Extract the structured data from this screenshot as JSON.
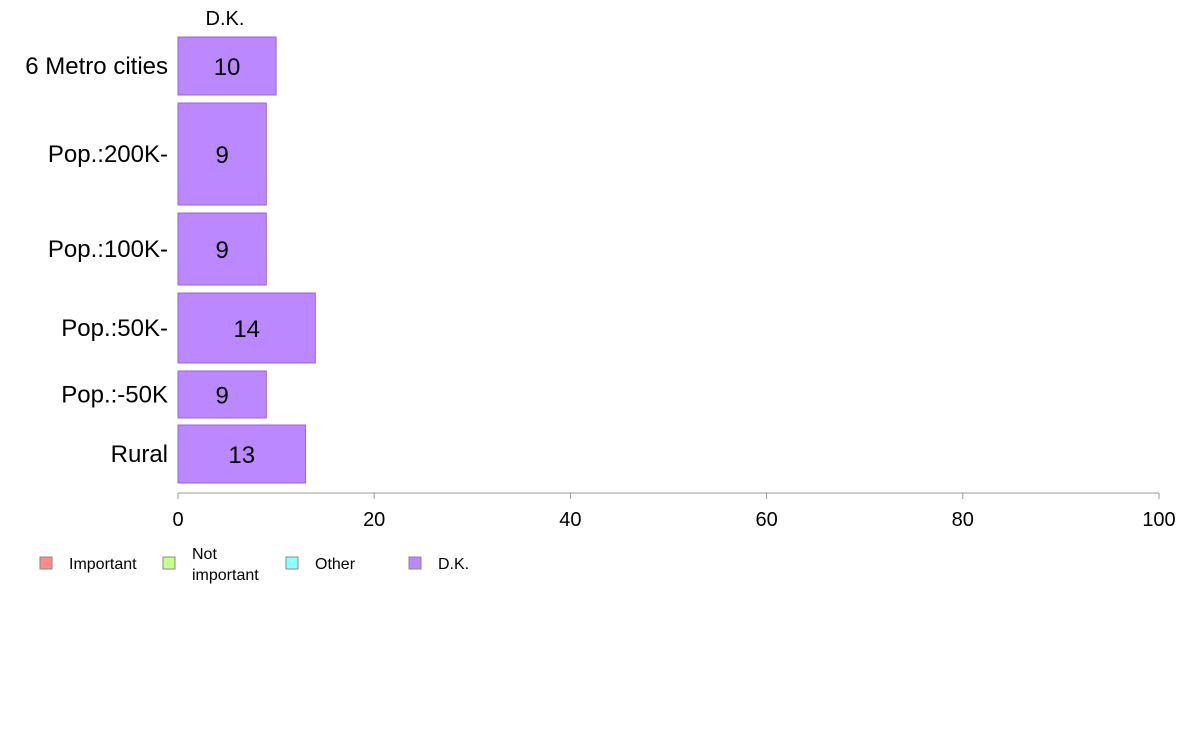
{
  "chart_data": {
    "type": "bar",
    "orientation": "horizontal",
    "stacked": true,
    "column_header": "D.K.",
    "categories": [
      "6 Metro cities",
      "Pop.:200K-",
      "Pop.:100K-",
      "Pop.:50K-",
      "Pop.:-50K",
      "Rural"
    ],
    "series": [
      {
        "name": "Important",
        "color": "#ff8a8a",
        "values": [
          0,
          0,
          0,
          0,
          0,
          0
        ]
      },
      {
        "name": "Not important",
        "color": "#c6ff8a",
        "values": [
          0,
          0,
          0,
          0,
          0,
          0
        ]
      },
      {
        "name": "Other",
        "color": "#8affff",
        "values": [
          0,
          0,
          0,
          0,
          0,
          0
        ]
      },
      {
        "name": "D.K.",
        "color": "#bb88ff",
        "values": [
          10,
          9,
          9,
          14,
          9,
          13
        ]
      }
    ],
    "xlim": [
      0,
      100
    ],
    "xticks": [
      0,
      20,
      40,
      60,
      80,
      100
    ],
    "xlabel": "",
    "ylabel": "",
    "grid": false,
    "legend_position": "bottom-left"
  },
  "legend": {
    "items": [
      {
        "label_lines": [
          "Important"
        ],
        "color": "#ff8a8a"
      },
      {
        "label_lines": [
          "Not",
          "important"
        ],
        "color": "#c6ff8a"
      },
      {
        "label_lines": [
          "Other"
        ],
        "color": "#8affff"
      },
      {
        "label_lines": [
          "D.K."
        ],
        "color": "#bb88ff"
      }
    ]
  }
}
